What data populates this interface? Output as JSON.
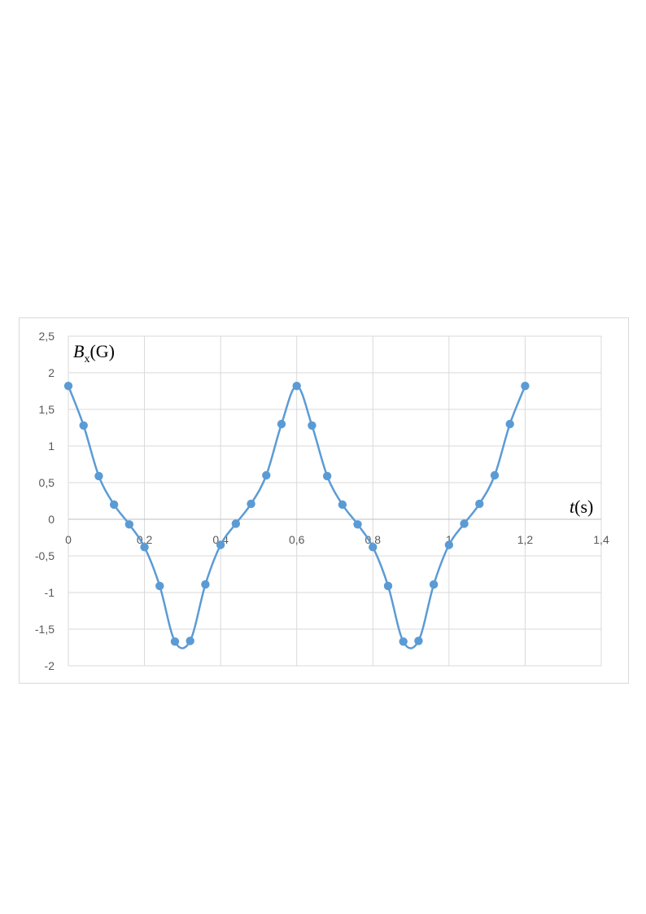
{
  "chart_data": {
    "type": "scatter",
    "title": "",
    "ylabel": {
      "var": "B",
      "sub": "x",
      "unit": "(G)"
    },
    "xlabel": {
      "var": "t",
      "unit": "(s)"
    },
    "xlim": [
      0,
      1.4
    ],
    "ylim": [
      -2,
      2.5
    ],
    "x_ticks": [
      "0",
      "0,2",
      "0,4",
      "0,6",
      "0,8",
      "1",
      "1,2",
      "1,4"
    ],
    "y_ticks": [
      "2,5",
      "2",
      "1,5",
      "1",
      "0,5",
      "0",
      "-0,5",
      "-1",
      "-1,5",
      "-2"
    ],
    "grid": true,
    "smooth_line": true,
    "marker": "circle",
    "series_color": "#5b9bd5",
    "series": [
      {
        "x": [
          0,
          0.04,
          0.08,
          0.12,
          0.16,
          0.2,
          0.24,
          0.28,
          0.32,
          0.36,
          0.4,
          0.44,
          0.48,
          0.52,
          0.56,
          0.6,
          0.64,
          0.68,
          0.72,
          0.76,
          0.8,
          0.84,
          0.88,
          0.92,
          0.96,
          1.0,
          1.04,
          1.08,
          1.12,
          1.16,
          1.2
        ],
        "y": [
          1.82,
          1.28,
          0.59,
          0.2,
          -0.07,
          -0.38,
          -0.91,
          -1.67,
          -1.66,
          -0.89,
          -0.35,
          -0.06,
          0.21,
          0.6,
          1.3,
          1.82,
          1.28,
          0.59,
          0.2,
          -0.07,
          -0.38,
          -0.91,
          -1.67,
          -1.66,
          -0.89,
          -0.35,
          -0.06,
          0.21,
          0.6,
          1.3,
          1.82
        ]
      }
    ]
  }
}
